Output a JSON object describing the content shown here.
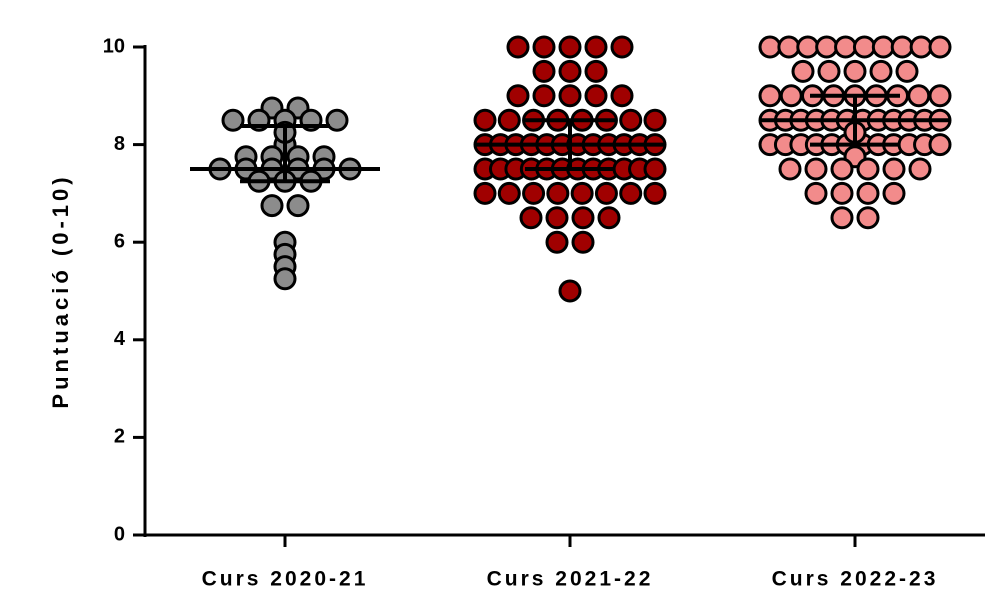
{
  "chart_data": {
    "type": "dot",
    "ylabel": "Puntuació (0-10)",
    "ylim": [
      0,
      10
    ],
    "yticks": [
      0,
      2,
      4,
      6,
      8,
      10
    ],
    "groups": [
      {
        "name": "Curs 2020-21",
        "color": "#8c8c8c",
        "values": [
          8.75,
          8.75,
          8.5,
          8.5,
          8.5,
          8.5,
          8.5,
          8.25,
          8,
          7.75,
          7.75,
          7.75,
          7.75,
          7.5,
          7.5,
          7.5,
          7.5,
          7.5,
          7.5,
          7.25,
          7.25,
          7.25,
          6.75,
          6.75,
          6,
          5.75,
          5.5,
          5.25
        ],
        "median": 7.5,
        "q1": 7.25,
        "q3": 8.38
      },
      {
        "name": "Curs 2021-22",
        "color": "#a00000",
        "values": [
          10,
          10,
          10,
          10,
          10,
          9.5,
          9.5,
          9.5,
          9,
          9,
          9,
          9,
          9,
          8.5,
          8.5,
          8.5,
          8.5,
          8.5,
          8.5,
          8.5,
          8.5,
          8,
          8,
          8,
          8,
          8,
          8,
          8,
          8,
          8,
          8,
          8,
          8,
          7.5,
          7.5,
          7.5,
          7.5,
          7.5,
          7.5,
          7.5,
          7.5,
          7.5,
          7.5,
          7.5,
          7.5,
          7,
          7,
          7,
          7,
          7,
          7,
          7,
          7,
          6.5,
          6.5,
          6.5,
          6.5,
          6,
          6,
          5
        ],
        "median": 8,
        "q1": 7.5,
        "q3": 8.5
      },
      {
        "name": "Curs 2022-23",
        "color": "#f28b8b",
        "values": [
          10,
          10,
          10,
          10,
          10,
          10,
          10,
          10,
          10,
          10,
          9.5,
          9.5,
          9.5,
          9.5,
          9.5,
          9,
          9,
          9,
          9,
          9,
          9,
          9,
          9,
          9,
          8.5,
          8.5,
          8.5,
          8.5,
          8.5,
          8.5,
          8.5,
          8.5,
          8.5,
          8.5,
          8.5,
          8.5,
          8.25,
          8,
          8,
          8,
          8,
          8,
          8,
          8,
          8,
          8,
          8,
          8,
          8,
          7.75,
          7.5,
          7.5,
          7.5,
          7.5,
          7.5,
          7.5,
          7,
          7,
          7,
          7,
          6.5,
          6.5
        ],
        "median": 8.5,
        "q1": 8,
        "q3": 9
      }
    ]
  }
}
